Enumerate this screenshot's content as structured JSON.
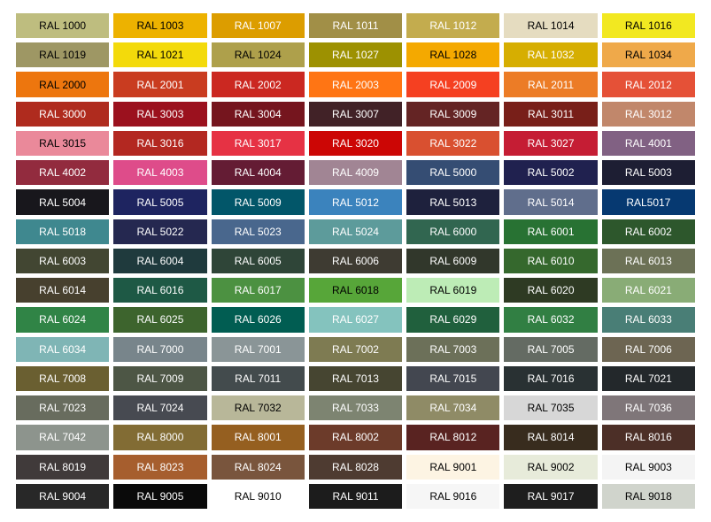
{
  "page": {
    "background": "#FFFFFF"
  },
  "chart_data": {
    "type": "table",
    "description": "RAL classic color swatch chart, 7 columns by 17 rows, each cell shows the RAL code on its color",
    "grid": {
      "columns": 7,
      "rows": 17
    },
    "rows": [
      [
        {
          "label": "RAL 1000",
          "bg": "#BEBD7F",
          "fg": "#000000"
        },
        {
          "label": "RAL 1003",
          "bg": "#EDB200",
          "fg": "#000000"
        },
        {
          "label": "RAL 1007",
          "bg": "#DC9D00",
          "fg": "#FFFFFF"
        },
        {
          "label": "RAL 1011",
          "bg": "#A18F47",
          "fg": "#FFFFFF"
        },
        {
          "label": "RAL 1012",
          "bg": "#C3AC4E",
          "fg": "#FFFFFF"
        },
        {
          "label": "RAL 1014",
          "bg": "#E5DCC0",
          "fg": "#000000"
        },
        {
          "label": "RAL 1016",
          "bg": "#F2E821",
          "fg": "#000000"
        }
      ],
      [
        {
          "label": "RAL 1019",
          "bg": "#9E9764",
          "fg": "#000000"
        },
        {
          "label": "RAL 1021",
          "bg": "#F3DA0B",
          "fg": "#000000"
        },
        {
          "label": "RAL 1024",
          "bg": "#AEA04B",
          "fg": "#000000"
        },
        {
          "label": "RAL 1027",
          "bg": "#9D9101",
          "fg": "#FFFFFF"
        },
        {
          "label": "RAL 1028",
          "bg": "#F4A900",
          "fg": "#000000"
        },
        {
          "label": "RAL 1032",
          "bg": "#D6AE01",
          "fg": "#FFFFFF"
        },
        {
          "label": "RAL 1034",
          "bg": "#EFA94A",
          "fg": "#000000"
        }
      ],
      [
        {
          "label": "RAL 2000",
          "bg": "#ED760E",
          "fg": "#000000"
        },
        {
          "label": "RAL 2001",
          "bg": "#C93C20",
          "fg": "#FFFFFF"
        },
        {
          "label": "RAL 2002",
          "bg": "#CB2821",
          "fg": "#FFFFFF"
        },
        {
          "label": "RAL 2003",
          "bg": "#FF7514",
          "fg": "#FFFFFF"
        },
        {
          "label": "RAL 2009",
          "bg": "#F54021",
          "fg": "#FFFFFF"
        },
        {
          "label": "RAL 2011",
          "bg": "#EC7C26",
          "fg": "#FFFFFF"
        },
        {
          "label": "RAL 2012",
          "bg": "#E55137",
          "fg": "#FFFFFF"
        }
      ],
      [
        {
          "label": "RAL 3000",
          "bg": "#AF2B1E",
          "fg": "#FFFFFF"
        },
        {
          "label": "RAL 3003",
          "bg": "#9B111E",
          "fg": "#FFFFFF"
        },
        {
          "label": "RAL 3004",
          "bg": "#75151E",
          "fg": "#FFFFFF"
        },
        {
          "label": "RAL 3007",
          "bg": "#412227",
          "fg": "#FFFFFF"
        },
        {
          "label": "RAL 3009",
          "bg": "#642424",
          "fg": "#FFFFFF"
        },
        {
          "label": "RAL 3011",
          "bg": "#781F19",
          "fg": "#FFFFFF"
        },
        {
          "label": "RAL 3012",
          "bg": "#C1876B",
          "fg": "#FFFFFF"
        }
      ],
      [
        {
          "label": "RAL 3015",
          "bg": "#EA899A",
          "fg": "#000000"
        },
        {
          "label": "RAL 3016",
          "bg": "#B32821",
          "fg": "#FFFFFF"
        },
        {
          "label": "RAL 3017",
          "bg": "#E63244",
          "fg": "#FFFFFF"
        },
        {
          "label": "RAL 3020",
          "bg": "#CC0605",
          "fg": "#FFFFFF"
        },
        {
          "label": "RAL 3022",
          "bg": "#D95030",
          "fg": "#FFFFFF"
        },
        {
          "label": "RAL 3027",
          "bg": "#C51D34",
          "fg": "#FFFFFF"
        },
        {
          "label": "RAL 4001",
          "bg": "#816183",
          "fg": "#FFFFFF"
        }
      ],
      [
        {
          "label": "RAL 4002",
          "bg": "#922B3E",
          "fg": "#FFFFFF"
        },
        {
          "label": "RAL 4003",
          "bg": "#DE4C8A",
          "fg": "#FFFFFF"
        },
        {
          "label": "RAL 4004",
          "bg": "#641C34",
          "fg": "#FFFFFF"
        },
        {
          "label": "RAL 4009",
          "bg": "#A18594",
          "fg": "#FFFFFF"
        },
        {
          "label": "RAL 5000",
          "bg": "#354D73",
          "fg": "#FFFFFF"
        },
        {
          "label": "RAL 5002",
          "bg": "#20214F",
          "fg": "#FFFFFF"
        },
        {
          "label": "RAL 5003",
          "bg": "#1D1E33",
          "fg": "#FFFFFF"
        }
      ],
      [
        {
          "label": "RAL 5004",
          "bg": "#18171C",
          "fg": "#FFFFFF"
        },
        {
          "label": "RAL 5005",
          "bg": "#1E2460",
          "fg": "#FFFFFF"
        },
        {
          "label": "RAL 5009",
          "bg": "#025669",
          "fg": "#FFFFFF"
        },
        {
          "label": "RAL 5012",
          "bg": "#3B83BD",
          "fg": "#FFFFFF"
        },
        {
          "label": "RAL 5013",
          "bg": "#1E213D",
          "fg": "#FFFFFF"
        },
        {
          "label": "RAL 5014",
          "bg": "#606E8C",
          "fg": "#FFFFFF"
        },
        {
          "label": "RAL5017",
          "bg": "#063971",
          "fg": "#FFFFFF"
        }
      ],
      [
        {
          "label": "RAL 5018",
          "bg": "#3F888F",
          "fg": "#FFFFFF"
        },
        {
          "label": "RAL 5022",
          "bg": "#252850",
          "fg": "#FFFFFF"
        },
        {
          "label": "RAL 5023",
          "bg": "#49678D",
          "fg": "#FFFFFF"
        },
        {
          "label": "RAL 5024",
          "bg": "#5D9B9B",
          "fg": "#FFFFFF"
        },
        {
          "label": "RAL 6000",
          "bg": "#316650",
          "fg": "#FFFFFF"
        },
        {
          "label": "RAL 6001",
          "bg": "#287233",
          "fg": "#FFFFFF"
        },
        {
          "label": "RAL 6002",
          "bg": "#2D572C",
          "fg": "#FFFFFF"
        }
      ],
      [
        {
          "label": "RAL 6003",
          "bg": "#424632",
          "fg": "#FFFFFF"
        },
        {
          "label": "RAL 6004",
          "bg": "#1F3A3D",
          "fg": "#FFFFFF"
        },
        {
          "label": "RAL 6005",
          "bg": "#2F4538",
          "fg": "#FFFFFF"
        },
        {
          "label": "RAL 6006",
          "bg": "#3E3B32",
          "fg": "#FFFFFF"
        },
        {
          "label": "RAL 6009",
          "bg": "#31372B",
          "fg": "#FFFFFF"
        },
        {
          "label": "RAL 6010",
          "bg": "#35682D",
          "fg": "#FFFFFF"
        },
        {
          "label": "RAL 6013",
          "bg": "#6C7156",
          "fg": "#FFFFFF"
        }
      ],
      [
        {
          "label": "RAL 6014",
          "bg": "#47402E",
          "fg": "#FFFFFF"
        },
        {
          "label": "RAL 6016",
          "bg": "#1E5945",
          "fg": "#FFFFFF"
        },
        {
          "label": "RAL 6017",
          "bg": "#4C9141",
          "fg": "#FFFFFF"
        },
        {
          "label": "RAL 6018",
          "bg": "#57A639",
          "fg": "#000000"
        },
        {
          "label": "RAL 6019",
          "bg": "#BDECB6",
          "fg": "#000000"
        },
        {
          "label": "RAL 6020",
          "bg": "#2E3A23",
          "fg": "#FFFFFF"
        },
        {
          "label": "RAL 6021",
          "bg": "#89AC76",
          "fg": "#FFFFFF"
        }
      ],
      [
        {
          "label": "RAL 6024",
          "bg": "#308446",
          "fg": "#FFFFFF"
        },
        {
          "label": "RAL 6025",
          "bg": "#3D642D",
          "fg": "#FFFFFF"
        },
        {
          "label": "RAL 6026",
          "bg": "#015D52",
          "fg": "#FFFFFF"
        },
        {
          "label": "RAL 6027",
          "bg": "#84C3BE",
          "fg": "#FFFFFF"
        },
        {
          "label": "RAL 6029",
          "bg": "#20603D",
          "fg": "#FFFFFF"
        },
        {
          "label": "RAL 6032",
          "bg": "#317F43",
          "fg": "#FFFFFF"
        },
        {
          "label": "RAL 6033",
          "bg": "#497E76",
          "fg": "#FFFFFF"
        }
      ],
      [
        {
          "label": "RAL 6034",
          "bg": "#7FB5B5",
          "fg": "#FFFFFF"
        },
        {
          "label": "RAL 7000",
          "bg": "#78858B",
          "fg": "#FFFFFF"
        },
        {
          "label": "RAL 7001",
          "bg": "#8A9597",
          "fg": "#FFFFFF"
        },
        {
          "label": "RAL 7002",
          "bg": "#7E7B52",
          "fg": "#FFFFFF"
        },
        {
          "label": "RAL 7003",
          "bg": "#6C7059",
          "fg": "#FFFFFF"
        },
        {
          "label": "RAL 7005",
          "bg": "#646B63",
          "fg": "#FFFFFF"
        },
        {
          "label": "RAL 7006",
          "bg": "#6D6552",
          "fg": "#FFFFFF"
        }
      ],
      [
        {
          "label": "RAL 7008",
          "bg": "#6A5F31",
          "fg": "#FFFFFF"
        },
        {
          "label": "RAL 7009",
          "bg": "#4D5645",
          "fg": "#FFFFFF"
        },
        {
          "label": "RAL 7011",
          "bg": "#434B4D",
          "fg": "#FFFFFF"
        },
        {
          "label": "RAL 7013",
          "bg": "#464531",
          "fg": "#FFFFFF"
        },
        {
          "label": "RAL 7015",
          "bg": "#434750",
          "fg": "#FFFFFF"
        },
        {
          "label": "RAL 7016",
          "bg": "#293133",
          "fg": "#FFFFFF"
        },
        {
          "label": "RAL 7021",
          "bg": "#23282B",
          "fg": "#FFFFFF"
        }
      ],
      [
        {
          "label": "RAL 7023",
          "bg": "#686C5E",
          "fg": "#FFFFFF"
        },
        {
          "label": "RAL 7024",
          "bg": "#474A51",
          "fg": "#FFFFFF"
        },
        {
          "label": "RAL 7032",
          "bg": "#B8B799",
          "fg": "#000000"
        },
        {
          "label": "RAL 7033",
          "bg": "#7D8471",
          "fg": "#FFFFFF"
        },
        {
          "label": "RAL 7034",
          "bg": "#8F8B66",
          "fg": "#FFFFFF"
        },
        {
          "label": "RAL 7035",
          "bg": "#D7D7D7",
          "fg": "#000000"
        },
        {
          "label": "RAL 7036",
          "bg": "#7F7679",
          "fg": "#FFFFFF"
        }
      ],
      [
        {
          "label": "RAL 7042",
          "bg": "#8D948D",
          "fg": "#FFFFFF"
        },
        {
          "label": "RAL 8000",
          "bg": "#826C34",
          "fg": "#FFFFFF"
        },
        {
          "label": "RAL 8001",
          "bg": "#955F20",
          "fg": "#FFFFFF"
        },
        {
          "label": "RAL 8002",
          "bg": "#6C3B2A",
          "fg": "#FFFFFF"
        },
        {
          "label": "RAL 8012",
          "bg": "#592321",
          "fg": "#FFFFFF"
        },
        {
          "label": "RAL 8014",
          "bg": "#382C1E",
          "fg": "#FFFFFF"
        },
        {
          "label": "RAL 8016",
          "bg": "#4C2F27",
          "fg": "#FFFFFF"
        }
      ],
      [
        {
          "label": "RAL 8019",
          "bg": "#403A3A",
          "fg": "#FFFFFF"
        },
        {
          "label": "RAL 8023",
          "bg": "#A65E2E",
          "fg": "#FFFFFF"
        },
        {
          "label": "RAL 8024",
          "bg": "#79553D",
          "fg": "#FFFFFF"
        },
        {
          "label": "RAL 8028",
          "bg": "#4E3B31",
          "fg": "#FFFFFF"
        },
        {
          "label": "RAL 9001",
          "bg": "#FDF4E3",
          "fg": "#000000"
        },
        {
          "label": "RAL 9002",
          "bg": "#E7EBDA",
          "fg": "#000000"
        },
        {
          "label": "RAL 9003",
          "bg": "#F4F4F4",
          "fg": "#000000"
        }
      ],
      [
        {
          "label": "RAL 9004",
          "bg": "#282828",
          "fg": "#FFFFFF"
        },
        {
          "label": "RAL 9005",
          "bg": "#0A0A0A",
          "fg": "#FFFFFF"
        },
        {
          "label": "RAL 9010",
          "bg": "#FFFFFF",
          "fg": "#000000"
        },
        {
          "label": "RAL 9011",
          "bg": "#1C1C1C",
          "fg": "#FFFFFF"
        },
        {
          "label": "RAL 9016",
          "bg": "#F6F6F6",
          "fg": "#000000"
        },
        {
          "label": "RAL 9017",
          "bg": "#1E1E1E",
          "fg": "#FFFFFF"
        },
        {
          "label": "RAL 9018",
          "bg": "#D0D4CC",
          "fg": "#000000"
        }
      ]
    ]
  }
}
